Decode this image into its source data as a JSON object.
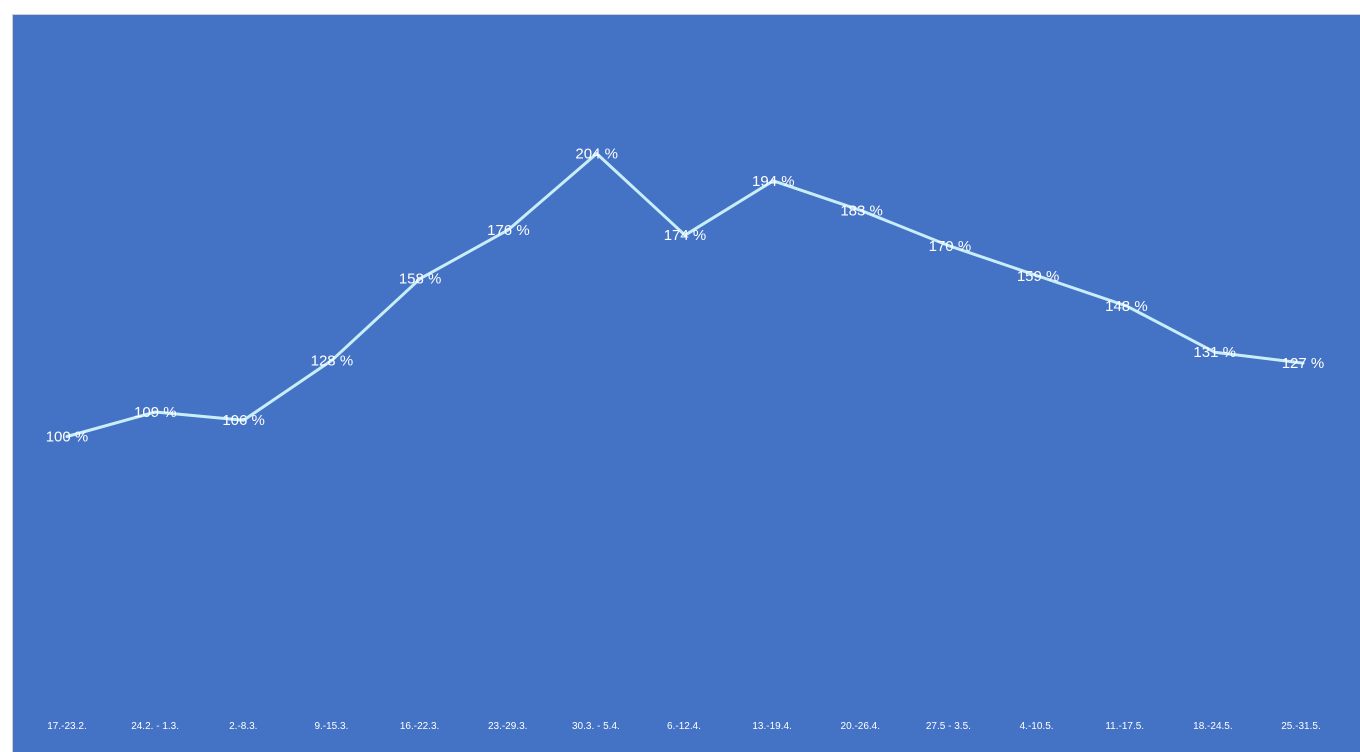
{
  "chart_data": {
    "type": "line",
    "title": "",
    "xlabel": "",
    "ylabel": "",
    "categories": [
      "17.-23.2.",
      "24.2. - 1.3.",
      "2.-8.3.",
      "9.-15.3.",
      "16.-22.3.",
      "23.-29.3.",
      "30.3. - 5.4.",
      "6.-12.4.",
      "13.-19.4.",
      "20.-26.4.",
      "27.5 - 3.5.",
      "4.-10.5.",
      "11.-17.5.",
      "18.-24.5.",
      "25.-31.5."
    ],
    "series": [
      {
        "values": [
          100,
          109,
          106,
          128,
          158,
          176,
          204,
          174,
          194,
          183,
          170,
          159,
          148,
          131,
          127
        ],
        "labels": [
          "100 %",
          "109 %",
          "106 %",
          "128 %",
          "158 %",
          "176 %",
          "204 %",
          "174 %",
          "194 %",
          "183 %",
          "170 %",
          "159 %",
          "148 %",
          "131 %",
          "127 %"
        ],
        "color": "#c9eefa"
      }
    ],
    "ylim": [
      0,
      245
    ],
    "grid": false,
    "legend": "none",
    "background_color": "#4472c4",
    "label_color": "#ffffff"
  }
}
